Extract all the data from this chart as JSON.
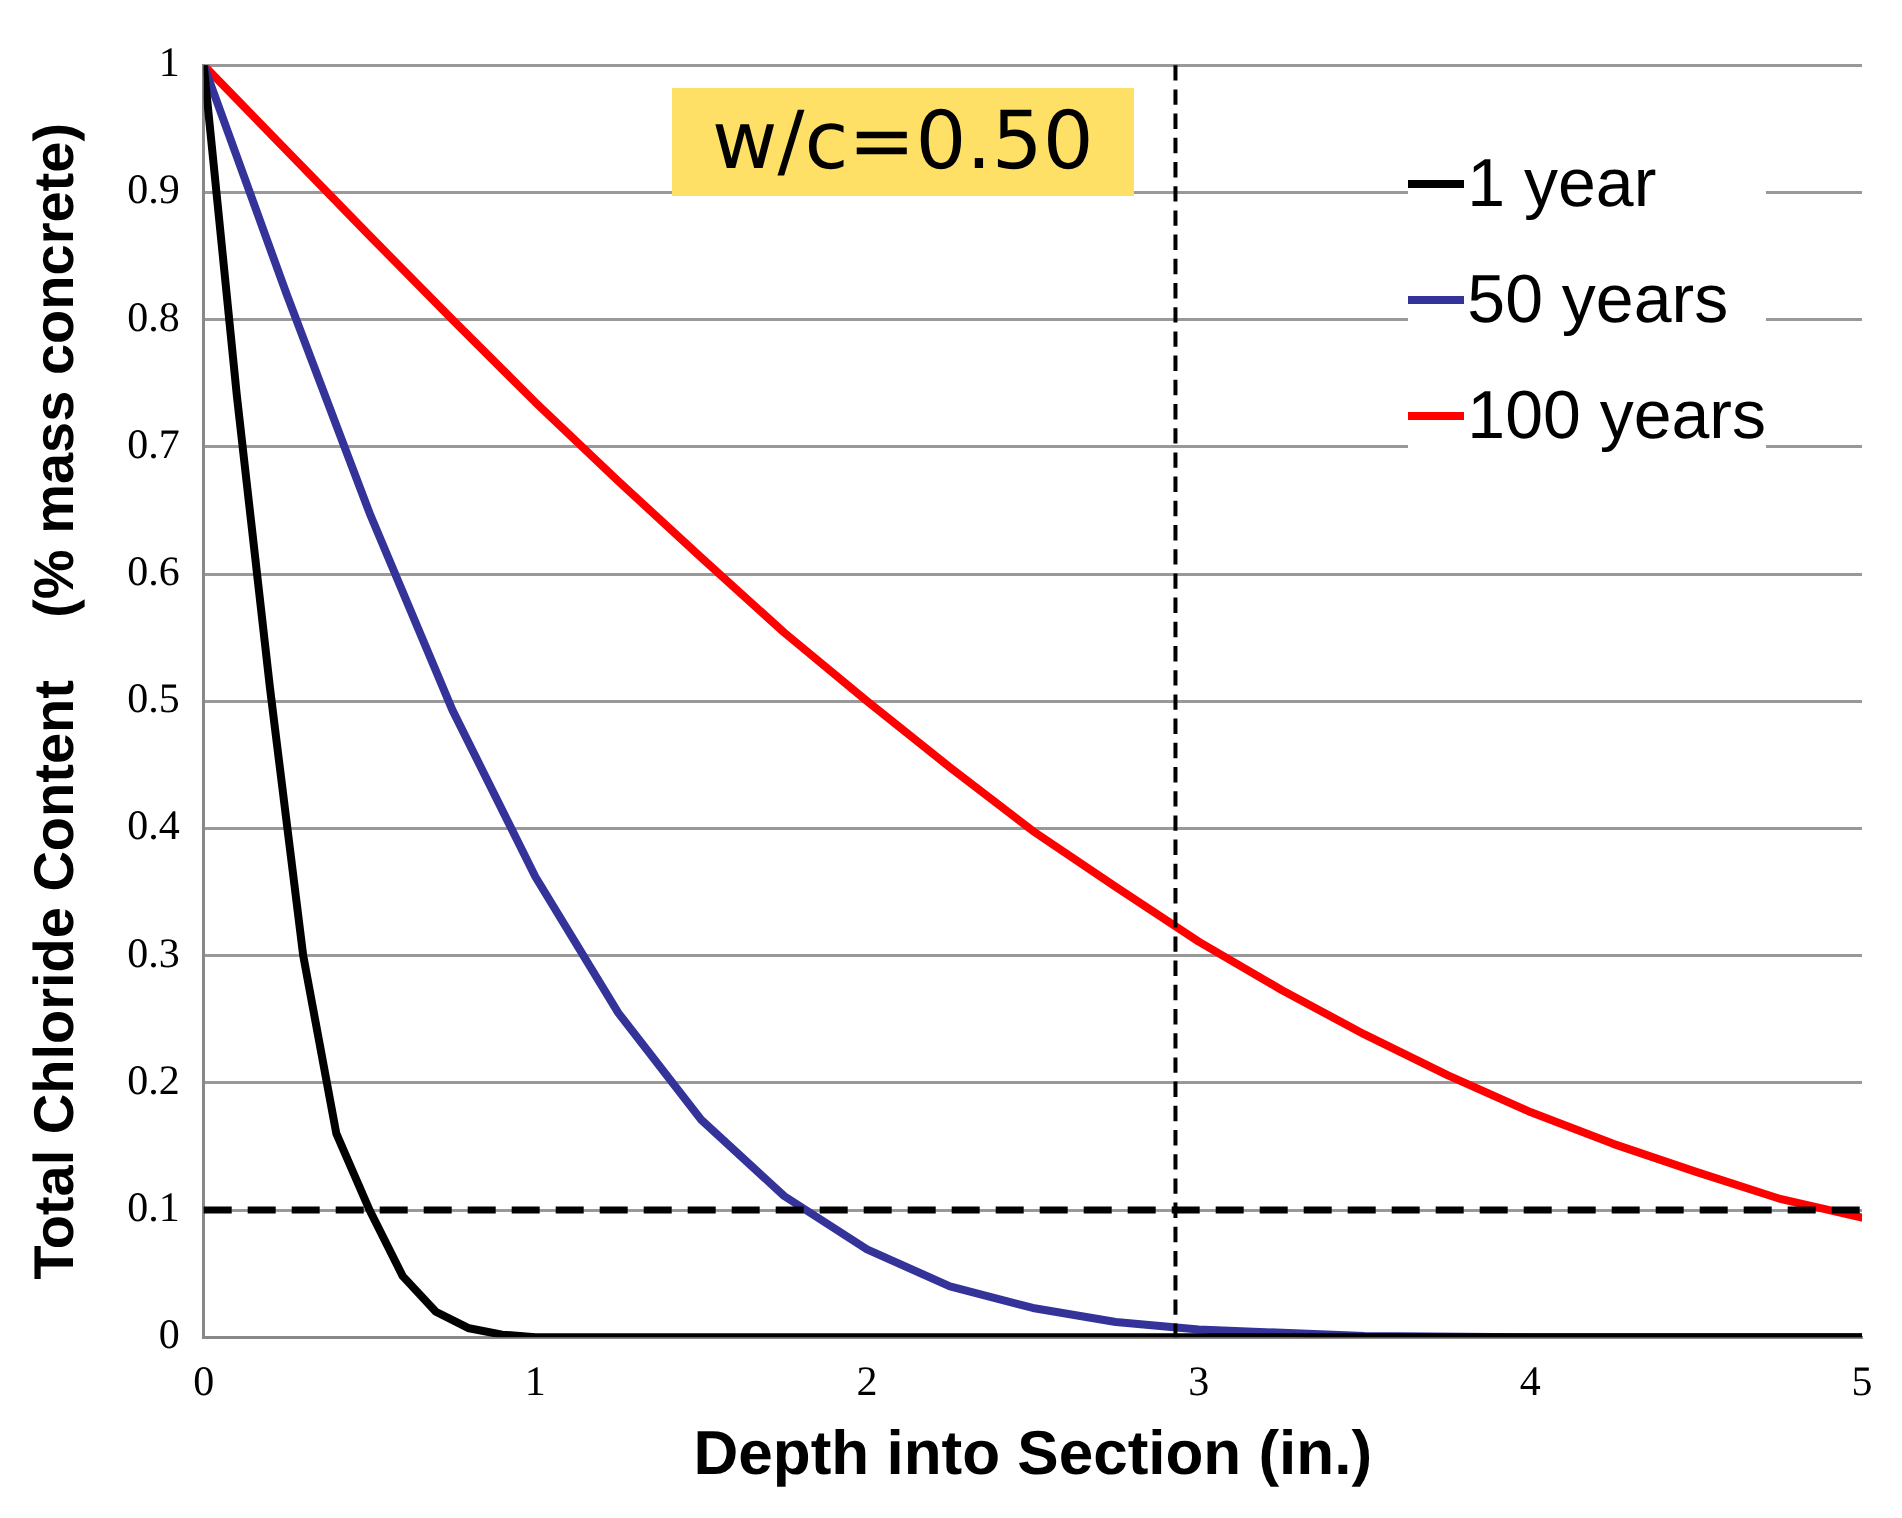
{
  "chart_data": {
    "type": "line",
    "xlabel": "Depth into Section (in.)",
    "ylabel": "Total Chloride Content    (% mass concrete)",
    "annotations": [
      "w/c=0.50"
    ],
    "xlim": [
      0,
      5
    ],
    "xticks": [
      0,
      1,
      2,
      3,
      4,
      5
    ],
    "ylim": [
      0,
      1
    ],
    "yticks": [
      0,
      0.1,
      0.2,
      0.3,
      0.4,
      0.5,
      0.6,
      0.7,
      0.8,
      0.9,
      1
    ],
    "grid": "y",
    "legend": "top right",
    "marker": "none",
    "line_style": "solid",
    "ref_lines": [
      {
        "axis": "x",
        "value": 2.93,
        "color": "#000000",
        "line_style": "dashed"
      },
      {
        "axis": "y",
        "value": 0.1,
        "color": "#000000",
        "line_style": "dashed"
      }
    ],
    "series": [
      {
        "name": "1 year",
        "color": "#000000",
        "x": [
          0,
          0.1,
          0.2,
          0.3,
          0.4,
          0.5,
          0.6,
          0.7,
          0.8,
          0.9,
          1,
          2,
          3,
          4,
          5
        ],
        "values": [
          1,
          0.74,
          0.51,
          0.3,
          0.16,
          0.1,
          0.048,
          0.02,
          0.007,
          0.002,
          0,
          0,
          0,
          0,
          0
        ]
      },
      {
        "name": "50 years",
        "color": "#333399",
        "x": [
          0,
          0.25,
          0.5,
          0.75,
          1,
          1.25,
          1.5,
          1.75,
          2,
          2.25,
          2.5,
          2.75,
          3,
          3.5,
          4,
          5
        ],
        "values": [
          1,
          0.82,
          0.648,
          0.493,
          0.362,
          0.255,
          0.171,
          0.111,
          0.069,
          0.04,
          0.023,
          0.012,
          0.006,
          0.001,
          0,
          0
        ]
      },
      {
        "name": "100 years",
        "color": "#ff0000",
        "x": [
          0,
          0.25,
          0.5,
          0.75,
          1,
          1.25,
          1.5,
          1.75,
          2,
          2.25,
          2.5,
          2.75,
          3,
          3.25,
          3.5,
          3.75,
          4,
          4.25,
          4.5,
          4.75,
          5
        ],
        "values": [
          1,
          0.933,
          0.866,
          0.8,
          0.735,
          0.673,
          0.613,
          0.554,
          0.5,
          0.448,
          0.398,
          0.354,
          0.311,
          0.273,
          0.238,
          0.206,
          0.177,
          0.152,
          0.13,
          0.109,
          0.094
        ]
      }
    ]
  }
}
